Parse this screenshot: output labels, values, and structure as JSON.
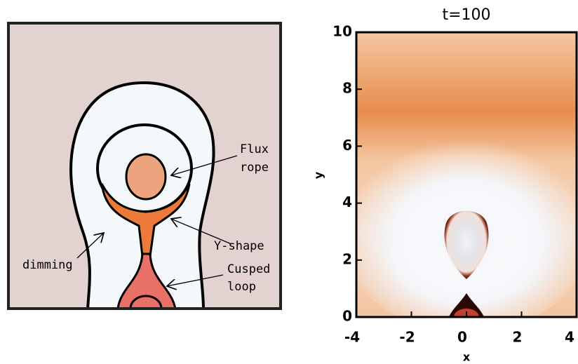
{
  "diagram": {
    "labels": {
      "flux_rope": [
        "Flux",
        "rope"
      ],
      "y_shape": "Y-shape",
      "dimming": "dimming",
      "cusped_loop": [
        "Cusped",
        "loop"
      ]
    }
  },
  "chart_data": {
    "type": "contour",
    "title": "t=100",
    "x_label": "x",
    "y_label": "y",
    "xlim": [
      -4,
      4
    ],
    "ylim": [
      0,
      10
    ],
    "xticks": [
      -4,
      -2,
      0,
      2,
      4
    ],
    "yticks": [
      0,
      2,
      4,
      6,
      8,
      10
    ]
  }
}
